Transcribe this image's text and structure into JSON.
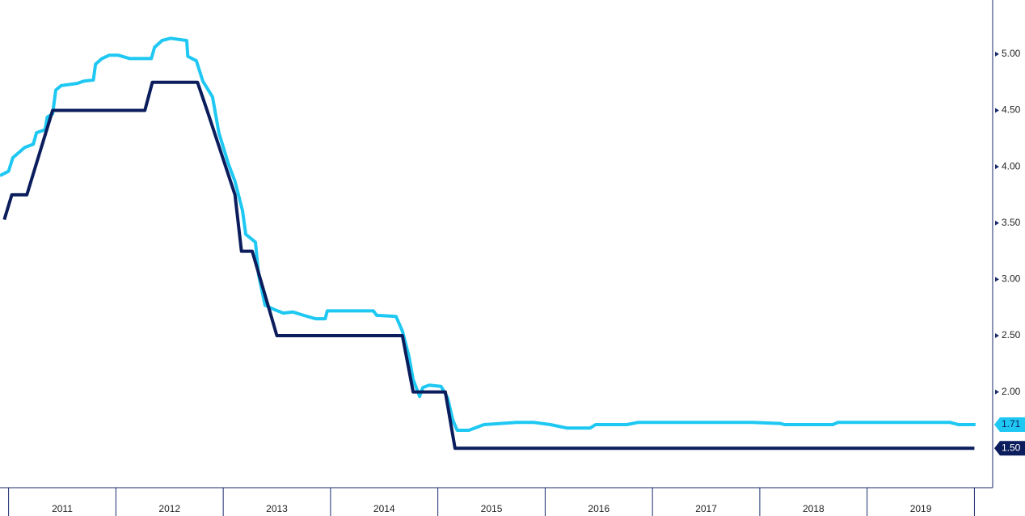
{
  "chart_data": {
    "type": "line",
    "xlim": [
      2010.92,
      2020.17
    ],
    "ylim": [
      1.15,
      5.48
    ],
    "xticks": [
      {
        "value": 2011.5,
        "label": "2011"
      },
      {
        "value": 2012.5,
        "label": "2012"
      },
      {
        "value": 2013.5,
        "label": "2013"
      },
      {
        "value": 2014.5,
        "label": "2014"
      },
      {
        "value": 2015.5,
        "label": "2015"
      },
      {
        "value": 2016.5,
        "label": "2016"
      },
      {
        "value": 2017.5,
        "label": "2017"
      },
      {
        "value": 2018.5,
        "label": "2018"
      },
      {
        "value": 2019.5,
        "label": "2019"
      }
    ],
    "yticks": [
      {
        "value": 2,
        "label": "2.00"
      },
      {
        "value": 2.5,
        "label": "2.50"
      },
      {
        "value": 3,
        "label": "3.00"
      },
      {
        "value": 3.5,
        "label": "3.50"
      },
      {
        "value": 4,
        "label": "4.00"
      },
      {
        "value": 4.5,
        "label": "4.50"
      },
      {
        "value": 5,
        "label": "5.00"
      }
    ],
    "series": [
      {
        "color": "#1ec8f2",
        "last_value_label": "1.71",
        "x": [
          2010.92,
          2011.0,
          2011.04,
          2011.15,
          2011.23,
          2011.26,
          2011.34,
          2011.36,
          2011.41,
          2011.44,
          2011.49,
          2011.64,
          2011.7,
          2011.79,
          2011.81,
          2011.87,
          2011.94,
          2012.02,
          2012.13,
          2012.33,
          2012.36,
          2012.43,
          2012.51,
          2012.66,
          2012.67,
          2012.75,
          2012.81,
          2012.9,
          2012.96,
          2013.05,
          2013.11,
          2013.18,
          2013.21,
          2013.3,
          2013.33,
          2013.39,
          2013.48,
          2013.56,
          2013.65,
          2013.75,
          2013.86,
          2013.95,
          2013.97,
          2014.24,
          2014.4,
          2014.43,
          2014.61,
          2014.67,
          2014.73,
          2014.77,
          2014.83,
          2014.86,
          2014.92,
          2015.03,
          2015.09,
          2015.14,
          2015.18,
          2015.29,
          2015.43,
          2015.74,
          2015.89,
          2016.05,
          2016.2,
          2016.42,
          2016.47,
          2016.76,
          2016.87,
          2017.93,
          2018.19,
          2018.23,
          2018.68,
          2018.73,
          2019.77,
          2019.85,
          2019.96,
          2020.01
        ],
        "values": [
          3.92,
          3.96,
          4.08,
          4.17,
          4.2,
          4.3,
          4.33,
          4.44,
          4.47,
          4.68,
          4.72,
          4.74,
          4.76,
          4.77,
          4.91,
          4.96,
          4.99,
          4.99,
          4.96,
          4.96,
          5.06,
          5.12,
          5.14,
          5.12,
          4.98,
          4.94,
          4.76,
          4.62,
          4.3,
          4.02,
          3.87,
          3.61,
          3.4,
          3.33,
          3.04,
          2.77,
          2.73,
          2.7,
          2.71,
          2.68,
          2.65,
          2.65,
          2.72,
          2.72,
          2.72,
          2.68,
          2.67,
          2.54,
          2.32,
          2.11,
          1.96,
          2.04,
          2.06,
          2.05,
          1.95,
          1.75,
          1.66,
          1.66,
          1.71,
          1.73,
          1.73,
          1.71,
          1.68,
          1.68,
          1.71,
          1.71,
          1.73,
          1.73,
          1.72,
          1.71,
          1.71,
          1.73,
          1.73,
          1.71,
          1.71,
          1.71
        ]
      },
      {
        "color": "#0b1d5c",
        "last_value_label": "1.50",
        "x": [
          2010.96,
          2011.03,
          2011.17,
          2011.41,
          2012.27,
          2012.34,
          2012.76,
          2012.85,
          2013.11,
          2013.17,
          2013.27,
          2013.5,
          2014.67,
          2014.77,
          2015.07,
          2015.16,
          2020.0
        ],
        "values": [
          3.53,
          3.75,
          3.75,
          4.5,
          4.5,
          4.75,
          4.75,
          4.5,
          3.75,
          3.25,
          3.25,
          2.5,
          2.5,
          2.0,
          2.0,
          1.5,
          1.5
        ]
      }
    ]
  }
}
